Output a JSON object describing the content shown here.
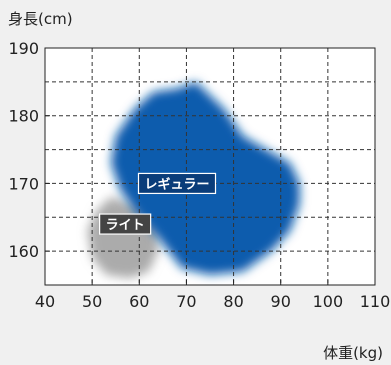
{
  "chart_data": {
    "type": "scatter",
    "xlabel": "体重(kg)",
    "ylabel": "身長(cm)",
    "xlim": [
      40,
      110
    ],
    "ylim": [
      155,
      190
    ],
    "xticks": [
      40,
      50,
      60,
      70,
      80,
      90,
      100,
      110
    ],
    "yticks": [
      160,
      170,
      180,
      190
    ],
    "grid": true,
    "regions": [
      {
        "name": "レギュラー",
        "color": "#0b5cad",
        "label_at": [
          68,
          170
        ],
        "polygon": [
          [
            68,
            184
          ],
          [
            72,
            185
          ],
          [
            78,
            181
          ],
          [
            82,
            177
          ],
          [
            87,
            175
          ],
          [
            92,
            173
          ],
          [
            94,
            170
          ],
          [
            94,
            167
          ],
          [
            92,
            163
          ],
          [
            88,
            160
          ],
          [
            82,
            157
          ],
          [
            75,
            156.5
          ],
          [
            69,
            157.5
          ],
          [
            64,
            162
          ],
          [
            59,
            166
          ],
          [
            56,
            169
          ],
          [
            54,
            173
          ],
          [
            55,
            177
          ],
          [
            59,
            181
          ],
          [
            63,
            183.5
          ]
        ]
      },
      {
        "name": "ライト",
        "color": "#ababab",
        "label_at": [
          57,
          164
        ],
        "polygon": [
          [
            51,
            166
          ],
          [
            54,
            168
          ],
          [
            58,
            167
          ],
          [
            62,
            166.5
          ],
          [
            64,
            164
          ],
          [
            64,
            160
          ],
          [
            62,
            157
          ],
          [
            58,
            156
          ],
          [
            53,
            156.5
          ],
          [
            50,
            159
          ],
          [
            49,
            163
          ]
        ]
      }
    ]
  }
}
